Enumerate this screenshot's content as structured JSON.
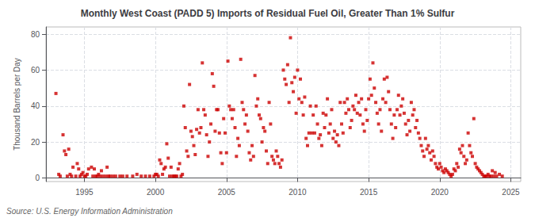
{
  "chart_data": {
    "type": "scatter",
    "title": "Monthly West Coast (PADD 5) Imports of Residual Fuel Oil, Greater Than 1% Sulfur",
    "ylabel": "Thousand Barrels per Day",
    "annotations": [
      "Source: U.S. Energy Information Administration"
    ],
    "color": "#CC0000",
    "marker": "square",
    "grid": true,
    "xlim": [
      1992.3,
      2025.7
    ],
    "ylim": [
      -2,
      84
    ],
    "xticks": [
      1995,
      2000,
      2005,
      2010,
      2015,
      2020,
      2025
    ],
    "yticks": [
      0,
      20,
      40,
      60,
      80
    ],
    "x": [
      1993.0,
      1993.2,
      1993.3,
      1993.5,
      1993.6,
      1993.7,
      1993.8,
      1993.9,
      1994.0,
      1994.1,
      1994.2,
      1994.4,
      1994.5,
      1994.6,
      1994.7,
      1994.8,
      1994.9,
      1995.0,
      1995.1,
      1995.2,
      1995.3,
      1995.5,
      1995.6,
      1995.7,
      1995.8,
      1995.9,
      1996.0,
      1996.1,
      1996.2,
      1996.3,
      1996.5,
      1996.6,
      1996.7,
      1996.8,
      1997.0,
      1997.2,
      1997.5,
      1997.7,
      1998.0,
      1998.4,
      1998.7,
      1999.0,
      1999.3,
      1999.6,
      1999.9,
      2000.0,
      2000.1,
      2000.2,
      2000.3,
      2000.4,
      2000.5,
      2000.6,
      2000.7,
      2000.8,
      2000.9,
      2001.0,
      2001.1,
      2001.2,
      2001.3,
      2001.4,
      2001.5,
      2001.6,
      2001.7,
      2001.8,
      2001.9,
      2002.0,
      2002.1,
      2002.2,
      2002.3,
      2002.4,
      2002.5,
      2002.6,
      2002.7,
      2002.8,
      2002.9,
      2003.0,
      2003.1,
      2003.2,
      2003.3,
      2003.4,
      2003.5,
      2003.6,
      2003.7,
      2003.8,
      2003.9,
      2004.0,
      2004.1,
      2004.2,
      2004.3,
      2004.4,
      2004.5,
      2004.6,
      2004.7,
      2004.8,
      2004.9,
      2005.0,
      2005.1,
      2005.2,
      2005.3,
      2005.4,
      2005.5,
      2005.6,
      2005.7,
      2005.8,
      2005.9,
      2006.0,
      2006.1,
      2006.2,
      2006.3,
      2006.4,
      2006.5,
      2006.6,
      2006.7,
      2006.8,
      2006.9,
      2007.0,
      2007.1,
      2007.2,
      2007.3,
      2007.4,
      2007.5,
      2007.6,
      2007.7,
      2007.8,
      2007.9,
      2008.0,
      2008.1,
      2008.2,
      2008.3,
      2008.4,
      2008.5,
      2008.6,
      2008.7,
      2008.8,
      2008.9,
      2009.0,
      2009.1,
      2009.2,
      2009.3,
      2009.4,
      2009.5,
      2009.6,
      2009.7,
      2009.8,
      2009.9,
      2010.0,
      2010.1,
      2010.2,
      2010.3,
      2010.4,
      2010.5,
      2010.6,
      2010.7,
      2010.8,
      2010.9,
      2011.0,
      2011.1,
      2011.2,
      2011.3,
      2011.4,
      2011.5,
      2011.6,
      2011.7,
      2011.8,
      2011.9,
      2012.0,
      2012.1,
      2012.2,
      2012.3,
      2012.4,
      2012.5,
      2012.6,
      2012.7,
      2012.8,
      2012.9,
      2013.0,
      2013.1,
      2013.2,
      2013.3,
      2013.4,
      2013.5,
      2013.6,
      2013.7,
      2013.8,
      2013.9,
      2014.0,
      2014.1,
      2014.2,
      2014.3,
      2014.4,
      2014.5,
      2014.6,
      2014.7,
      2014.8,
      2014.9,
      2015.0,
      2015.1,
      2015.2,
      2015.3,
      2015.4,
      2015.5,
      2015.6,
      2015.7,
      2015.8,
      2015.9,
      2016.0,
      2016.1,
      2016.2,
      2016.3,
      2016.4,
      2016.5,
      2016.6,
      2016.7,
      2016.8,
      2016.9,
      2017.0,
      2017.1,
      2017.2,
      2017.3,
      2017.4,
      2017.5,
      2017.6,
      2017.7,
      2017.8,
      2017.9,
      2018.0,
      2018.1,
      2018.2,
      2018.3,
      2018.4,
      2018.5,
      2018.6,
      2018.7,
      2018.8,
      2018.9,
      2019.0,
      2019.1,
      2019.2,
      2019.3,
      2019.4,
      2019.5,
      2019.6,
      2019.7,
      2019.8,
      2019.9,
      2020.0,
      2020.1,
      2020.2,
      2020.3,
      2020.4,
      2020.5,
      2020.6,
      2020.7,
      2020.8,
      2020.9,
      2021.0,
      2021.1,
      2021.2,
      2021.3,
      2021.4,
      2021.5,
      2021.6,
      2021.7,
      2021.8,
      2021.9,
      2022.0,
      2022.1,
      2022.2,
      2022.3,
      2022.4,
      2022.5,
      2022.6,
      2022.7,
      2022.8,
      2022.9,
      2023.0,
      2023.1,
      2023.2,
      2023.3,
      2023.4,
      2023.5,
      2023.6,
      2023.7,
      2023.8,
      2023.9,
      2024.0,
      2024.2,
      2024.4
    ],
    "values": [
      47,
      2,
      1,
      24,
      15,
      13,
      1,
      16,
      2,
      1,
      6,
      1,
      8,
      5,
      1,
      2,
      3,
      1,
      1,
      2,
      5,
      6,
      1,
      5,
      1,
      1,
      2,
      1,
      4,
      1,
      1,
      6,
      1,
      1,
      1,
      1,
      1,
      1,
      1,
      1,
      2,
      1,
      1,
      1,
      1,
      2,
      2,
      1,
      10,
      8,
      2,
      5,
      6,
      19,
      11,
      1,
      6,
      1,
      1,
      1,
      1,
      5,
      8,
      1,
      2,
      40,
      28,
      15,
      12,
      52,
      26,
      23,
      18,
      13,
      27,
      38,
      25,
      28,
      64,
      38,
      35,
      24,
      12,
      20,
      30,
      58,
      51,
      26,
      38,
      38,
      25,
      14,
      8,
      33,
      25,
      14,
      65,
      40,
      38,
      33,
      38,
      28,
      12,
      22,
      18,
      66,
      42,
      38,
      30,
      35,
      26,
      14,
      10,
      18,
      12,
      57,
      40,
      44,
      35,
      33,
      20,
      28,
      26,
      15,
      8,
      42,
      30,
      12,
      10,
      8,
      15,
      12,
      8,
      6,
      10,
      60,
      55,
      52,
      63,
      42,
      78,
      53,
      48,
      56,
      36,
      60,
      44,
      55,
      42,
      35,
      45,
      22,
      18,
      25,
      40,
      25,
      35,
      25,
      40,
      30,
      22,
      24,
      18,
      36,
      28,
      35,
      44,
      25,
      30,
      38,
      22,
      26,
      20,
      24,
      18,
      42,
      30,
      25,
      42,
      36,
      44,
      38,
      28,
      32,
      40,
      38,
      46,
      36,
      42,
      35,
      44,
      30,
      26,
      38,
      32,
      44,
      55,
      46,
      64,
      50,
      42,
      36,
      30,
      38,
      26,
      44,
      55,
      42,
      56,
      48,
      38,
      30,
      22,
      35,
      28,
      38,
      46,
      35,
      40,
      44,
      36,
      30,
      24,
      32,
      26,
      42,
      35,
      38,
      28,
      32,
      25,
      22,
      18,
      15,
      12,
      22,
      16,
      18,
      14,
      10,
      15,
      12,
      8,
      6,
      5,
      8,
      6,
      4,
      3,
      5,
      4,
      3,
      2,
      1,
      2,
      5,
      4,
      8,
      6,
      16,
      14,
      18,
      12,
      8,
      10,
      25,
      18,
      14,
      12,
      33,
      8,
      6,
      5,
      4,
      3,
      2,
      1,
      1,
      1,
      2,
      1,
      1,
      4,
      1,
      3,
      1,
      2,
      1
    ]
  }
}
